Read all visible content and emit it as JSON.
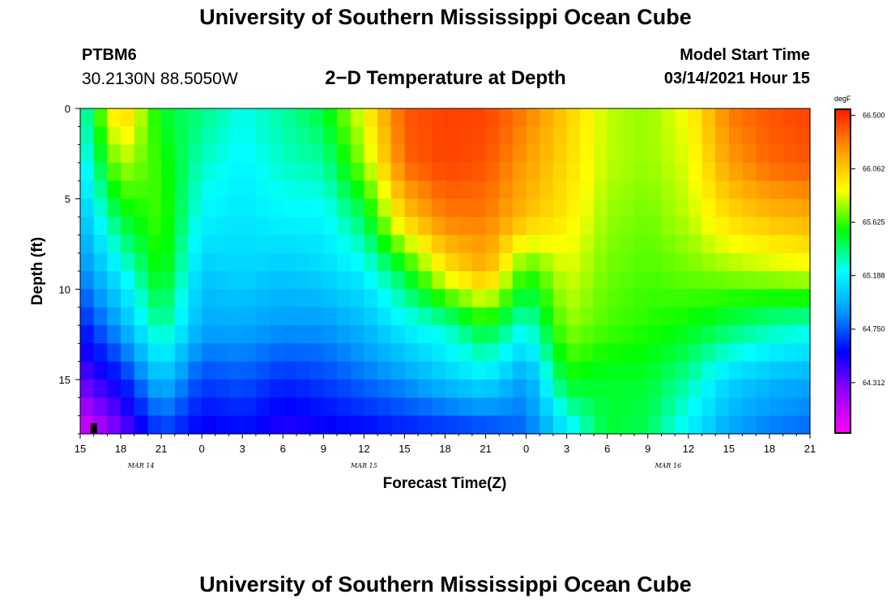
{
  "header": {
    "title": "University of Southern Mississippi Ocean Cube",
    "station_id": "PTBM6",
    "station_coords": "30.2130N 88.5050W",
    "plot_title": "2−D Temperature at Depth",
    "model_start_label": "Model Start Time",
    "model_start_value": "03/14/2021 Hour 15"
  },
  "footer": {
    "title": "University of Southern Mississippi Ocean Cube"
  },
  "chart_data": {
    "type": "heatmap",
    "title": "2-D Temperature at Depth",
    "xlabel": "Forecast Time(Z)",
    "ylabel": "Depth (ft)",
    "x_hours_from_start": [
      0,
      54
    ],
    "x_tick_labels": [
      "15",
      "18",
      "21",
      "0",
      "3",
      "6",
      "9",
      "12",
      "15",
      "18",
      "21",
      "0",
      "3",
      "6",
      "9",
      "12",
      "15",
      "18",
      "21"
    ],
    "date_labels": [
      {
        "text": "MAR  14",
        "at_tick": 1.5
      },
      {
        "text": "MAR  15",
        "at_tick": 7
      },
      {
        "text": "MAR  16",
        "at_tick": 14.5
      }
    ],
    "ylim": [
      0,
      18
    ],
    "y_ticks": [
      0,
      5,
      10,
      15
    ],
    "colorbar": {
      "unit": "degF",
      "min": 63.9,
      "max": 66.55,
      "labels": [
        "66.500",
        "66.062",
        "65.625",
        "65.188",
        "64.750",
        "64.312"
      ],
      "label_values": [
        66.5,
        66.062,
        65.625,
        65.188,
        64.75,
        64.312
      ]
    },
    "colormap": [
      "#ff00ff",
      "#9900ff",
      "#0000ff",
      "#0099ff",
      "#00ffff",
      "#00ff00",
      "#ffff00",
      "#ff9900",
      "#ff1a00"
    ],
    "temperature_profile_degF": {
      "note": "Approximate values read from the color field; rows = depth (ft), columns = hours after 03/14 15Z",
      "depths_ft": [
        0,
        3,
        6,
        9,
        12,
        15,
        17.5
      ],
      "hours": [
        0,
        3,
        6,
        9,
        12,
        15,
        18,
        21,
        24,
        27,
        30,
        33,
        36,
        39,
        42,
        45,
        48,
        51,
        54
      ],
      "values": [
        [
          65.25,
          66.1,
          65.5,
          65.4,
          65.25,
          65.35,
          65.5,
          65.9,
          66.4,
          66.45,
          66.45,
          66.3,
          66.05,
          65.8,
          65.75,
          65.9,
          66.3,
          66.4,
          66.45
        ],
        [
          65.15,
          65.8,
          65.6,
          65.3,
          65.2,
          65.3,
          65.35,
          65.75,
          66.35,
          66.45,
          66.4,
          66.2,
          66.0,
          65.8,
          65.75,
          65.85,
          66.2,
          66.35,
          66.4
        ],
        [
          65.0,
          65.5,
          65.65,
          65.2,
          65.15,
          65.2,
          65.2,
          65.45,
          66.05,
          66.3,
          66.3,
          66.1,
          65.95,
          65.75,
          65.7,
          65.8,
          66.0,
          66.1,
          66.15
        ],
        [
          64.85,
          65.2,
          65.6,
          65.05,
          65.1,
          65.05,
          65.1,
          65.2,
          65.5,
          65.95,
          66.15,
          65.6,
          65.85,
          65.7,
          65.65,
          65.7,
          65.75,
          65.8,
          65.85
        ],
        [
          64.6,
          64.95,
          65.4,
          64.95,
          64.95,
          64.9,
          64.9,
          65.0,
          65.2,
          65.3,
          65.55,
          65.25,
          65.75,
          65.65,
          65.6,
          65.55,
          65.45,
          65.35,
          65.3
        ],
        [
          64.35,
          64.6,
          65.05,
          64.7,
          64.75,
          64.65,
          64.7,
          64.8,
          64.9,
          65.05,
          65.15,
          64.9,
          65.55,
          65.5,
          65.5,
          65.35,
          65.1,
          65.0,
          64.95
        ],
        [
          64.05,
          64.35,
          64.75,
          64.55,
          64.6,
          64.5,
          64.55,
          64.6,
          64.65,
          64.7,
          64.75,
          64.8,
          65.2,
          65.5,
          65.45,
          65.2,
          64.95,
          64.85,
          64.8
        ]
      ]
    }
  }
}
